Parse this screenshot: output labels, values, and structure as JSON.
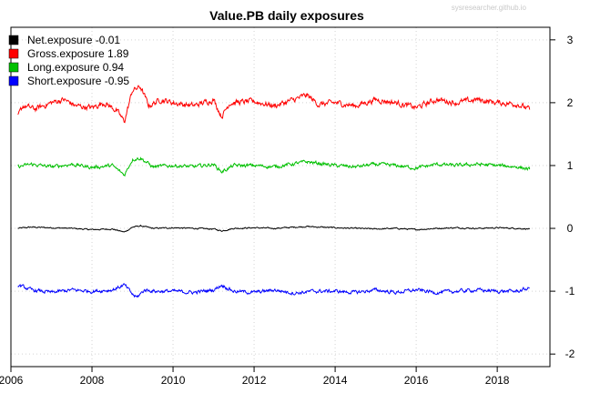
{
  "watermark": "sysresearcher.github.io",
  "chart_data": {
    "type": "line",
    "title": "Value.PB daily exposures",
    "xlabel": "",
    "ylabel": "",
    "xlim": [
      2006.0,
      2019.3
    ],
    "ylim": [
      -2.2,
      3.2
    ],
    "x_ticks": [
      2006,
      2008,
      2010,
      2012,
      2014,
      2016,
      2018
    ],
    "y_ticks": [
      -2,
      -1,
      0,
      1,
      2,
      3
    ],
    "y_axis_side": "right",
    "grid": true,
    "legend_position": "top-left",
    "date_range": [
      2006.17,
      2018.8
    ],
    "series": [
      {
        "name": "Net.exposure -0.01",
        "color": "#000000",
        "base": 0.0,
        "points": [
          [
            2006.17,
            0.0
          ],
          [
            2006.5,
            0.02
          ],
          [
            2007.0,
            0.01
          ],
          [
            2007.5,
            0.0
          ],
          [
            2008.0,
            -0.02
          ],
          [
            2008.5,
            -0.01
          ],
          [
            2008.8,
            -0.06
          ],
          [
            2009.0,
            0.02
          ],
          [
            2009.2,
            0.04
          ],
          [
            2009.5,
            0.0
          ],
          [
            2010.0,
            0.01
          ],
          [
            2010.5,
            0.0
          ],
          [
            2011.0,
            -0.01
          ],
          [
            2011.2,
            -0.04
          ],
          [
            2011.5,
            0.0
          ],
          [
            2012.0,
            0.01
          ],
          [
            2012.5,
            0.0
          ],
          [
            2013.0,
            0.02
          ],
          [
            2013.3,
            0.03
          ],
          [
            2014.0,
            0.01
          ],
          [
            2014.5,
            0.0
          ],
          [
            2015.0,
            -0.01
          ],
          [
            2015.5,
            0.0
          ],
          [
            2016.0,
            -0.02
          ],
          [
            2016.5,
            0.0
          ],
          [
            2017.0,
            0.01
          ],
          [
            2017.5,
            0.0
          ],
          [
            2018.0,
            0.01
          ],
          [
            2018.5,
            0.0
          ],
          [
            2018.8,
            -0.01
          ]
        ]
      },
      {
        "name": "Gross.exposure  1.89",
        "color": "#ff0000",
        "base": 2.0,
        "points": [
          [
            2006.17,
            1.78
          ],
          [
            2006.3,
            1.95
          ],
          [
            2006.6,
            1.9
          ],
          [
            2007.0,
            2.0
          ],
          [
            2007.3,
            2.05
          ],
          [
            2007.6,
            1.95
          ],
          [
            2008.0,
            1.92
          ],
          [
            2008.3,
            2.0
          ],
          [
            2008.6,
            1.88
          ],
          [
            2008.8,
            1.7
          ],
          [
            2009.0,
            2.2
          ],
          [
            2009.2,
            2.25
          ],
          [
            2009.4,
            1.95
          ],
          [
            2009.7,
            2.05
          ],
          [
            2010.0,
            2.0
          ],
          [
            2010.5,
            1.95
          ],
          [
            2011.0,
            2.05
          ],
          [
            2011.2,
            1.78
          ],
          [
            2011.4,
            2.0
          ],
          [
            2012.0,
            2.02
          ],
          [
            2012.5,
            1.95
          ],
          [
            2013.0,
            2.05
          ],
          [
            2013.3,
            2.12
          ],
          [
            2013.6,
            1.97
          ],
          [
            2014.0,
            2.0
          ],
          [
            2014.5,
            1.95
          ],
          [
            2015.0,
            2.05
          ],
          [
            2015.5,
            2.0
          ],
          [
            2016.0,
            1.92
          ],
          [
            2016.5,
            2.05
          ],
          [
            2017.0,
            2.0
          ],
          [
            2017.5,
            2.05
          ],
          [
            2018.0,
            2.0
          ],
          [
            2018.5,
            1.98
          ],
          [
            2018.8,
            1.89
          ]
        ]
      },
      {
        "name": "Long.exposure  0.94",
        "color": "#00c000",
        "base": 1.0,
        "points": [
          [
            2006.17,
            0.98
          ],
          [
            2006.5,
            1.02
          ],
          [
            2007.0,
            0.98
          ],
          [
            2007.5,
            1.02
          ],
          [
            2008.0,
            0.97
          ],
          [
            2008.5,
            1.0
          ],
          [
            2008.8,
            0.85
          ],
          [
            2009.0,
            1.1
          ],
          [
            2009.2,
            1.12
          ],
          [
            2009.5,
            0.98
          ],
          [
            2010.0,
            1.0
          ],
          [
            2010.5,
            0.98
          ],
          [
            2011.0,
            1.02
          ],
          [
            2011.2,
            0.9
          ],
          [
            2011.5,
            1.0
          ],
          [
            2012.0,
            1.0
          ],
          [
            2012.5,
            0.98
          ],
          [
            2013.0,
            1.03
          ],
          [
            2013.3,
            1.06
          ],
          [
            2014.0,
            1.0
          ],
          [
            2014.5,
            0.98
          ],
          [
            2015.0,
            1.02
          ],
          [
            2015.5,
            1.0
          ],
          [
            2016.0,
            0.96
          ],
          [
            2016.5,
            1.02
          ],
          [
            2017.0,
            1.0
          ],
          [
            2017.5,
            1.02
          ],
          [
            2018.0,
            1.0
          ],
          [
            2018.5,
            0.98
          ],
          [
            2018.8,
            0.94
          ]
        ]
      },
      {
        "name": "Short.exposure -0.95",
        "color": "#0000ff",
        "base": -1.0,
        "points": [
          [
            2006.17,
            -0.9
          ],
          [
            2006.5,
            -0.98
          ],
          [
            2007.0,
            -1.02
          ],
          [
            2007.5,
            -0.98
          ],
          [
            2008.0,
            -1.0
          ],
          [
            2008.5,
            -0.98
          ],
          [
            2008.8,
            -0.9
          ],
          [
            2009.0,
            -1.05
          ],
          [
            2009.1,
            -1.1
          ],
          [
            2009.3,
            -0.98
          ],
          [
            2009.6,
            -1.0
          ],
          [
            2010.0,
            -1.0
          ],
          [
            2010.5,
            -1.02
          ],
          [
            2011.0,
            -0.98
          ],
          [
            2011.2,
            -0.9
          ],
          [
            2011.5,
            -1.0
          ],
          [
            2012.0,
            -1.02
          ],
          [
            2012.5,
            -0.98
          ],
          [
            2013.0,
            -1.03
          ],
          [
            2013.5,
            -1.0
          ],
          [
            2014.0,
            -1.0
          ],
          [
            2014.5,
            -1.02
          ],
          [
            2015.0,
            -0.98
          ],
          [
            2015.5,
            -1.02
          ],
          [
            2016.0,
            -0.98
          ],
          [
            2016.5,
            -1.02
          ],
          [
            2017.0,
            -1.0
          ],
          [
            2017.5,
            -0.98
          ],
          [
            2018.0,
            -1.0
          ],
          [
            2018.5,
            -1.0
          ],
          [
            2018.8,
            -0.95
          ]
        ]
      }
    ]
  }
}
